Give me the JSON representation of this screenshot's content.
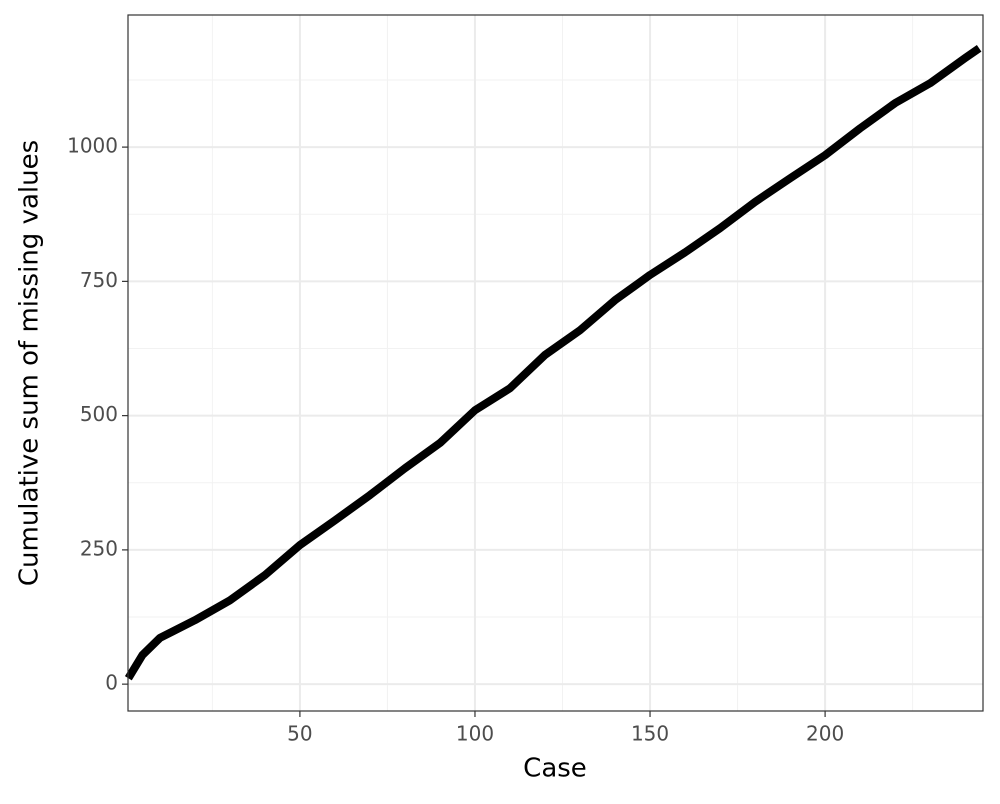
{
  "chart_data": {
    "type": "line",
    "x_label": "Case",
    "y_label": "Cumulative sum of missing values",
    "x": [
      1,
      5,
      10,
      20,
      30,
      40,
      50,
      60,
      70,
      80,
      90,
      100,
      110,
      120,
      130,
      140,
      150,
      160,
      170,
      180,
      190,
      200,
      210,
      220,
      230,
      240,
      244
    ],
    "values": [
      11,
      54,
      86,
      119,
      156,
      203,
      259,
      305,
      352,
      402,
      449,
      510,
      551,
      613,
      659,
      715,
      762,
      804,
      849,
      898,
      942,
      985,
      1035,
      1082,
      1119,
      1166,
      1184
    ],
    "color": "#000000",
    "xlim": [
      0.9,
      245.1
    ],
    "ylim": [
      -50,
      1246
    ],
    "xticks": [
      50,
      100,
      150,
      200
    ],
    "yticks": [
      0,
      250,
      500,
      750,
      1000
    ],
    "xminor": [
      25,
      75,
      125,
      175,
      225
    ],
    "yminor": [
      125,
      375,
      625,
      875,
      1125
    ],
    "grid": true
  }
}
